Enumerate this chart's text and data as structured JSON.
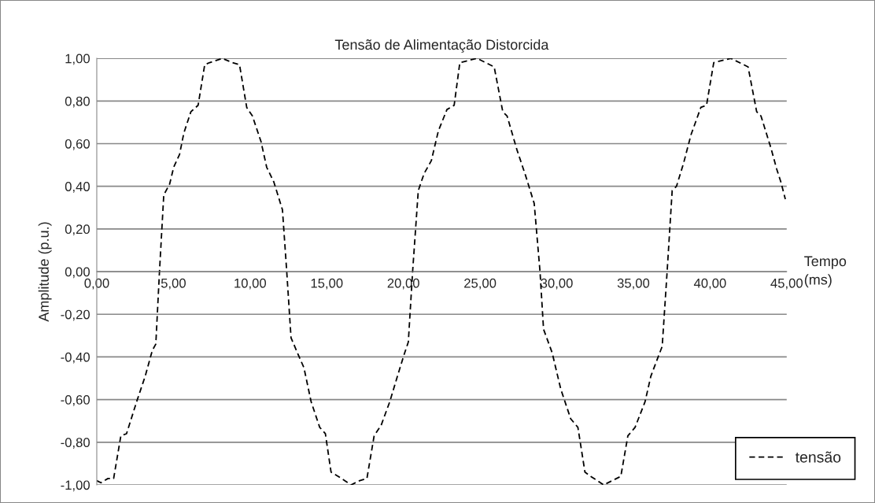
{
  "chart_data": {
    "type": "line",
    "title": "Tensão de Alimentação Distorcida",
    "xlabel": "Tempo (ms)",
    "ylabel": "Amplitude (p.u.)",
    "x": [
      0,
      0.27,
      0.73,
      1.1,
      1.57,
      1.94,
      2.6,
      3.16,
      3.62,
      3.85,
      4.09,
      4.37,
      4.75,
      5.02,
      5.4,
      5.68,
      6.14,
      6.61,
      7.04,
      7.36,
      8.19,
      8.85,
      9.31,
      9.78,
      10.15,
      10.71,
      11.08,
      11.55,
      12.11,
      12.39,
      12.67,
      13.14,
      13.51,
      13.98,
      14.54,
      14.91,
      15.28,
      15.75,
      16.59,
      17.15,
      17.62,
      18.09,
      18.55,
      19.11,
      19.57,
      20.04,
      20.32,
      20.6,
      20.97,
      21.35,
      21.82,
      22.28,
      22.84,
      23.31,
      23.68,
      24.8,
      25.92,
      26.48,
      26.76,
      27.41,
      27.97,
      28.53,
      28.91,
      29.14,
      29.7,
      30.26,
      30.91,
      31.38,
      31.84,
      32.22,
      33.06,
      34.18,
      34.64,
      35.11,
      35.76,
      36.14,
      36.88,
      37.2,
      37.53,
      37.81,
      38.28,
      38.75,
      39.4,
      39.77,
      40.24,
      41.36,
      42.48,
      43.04,
      43.32,
      43.97,
      44.35,
      44.62,
      44.91
    ],
    "series": [
      {
        "name": "tensão",
        "color": "#000000",
        "values": [
          -0.98,
          -0.99,
          -0.97,
          -0.97,
          -0.77,
          -0.76,
          -0.61,
          -0.49,
          -0.37,
          -0.34,
          0.0,
          0.36,
          0.41,
          0.49,
          0.55,
          0.65,
          0.75,
          0.78,
          0.97,
          0.98,
          1.0,
          0.98,
          0.97,
          0.77,
          0.73,
          0.61,
          0.49,
          0.42,
          0.29,
          0.0,
          -0.31,
          -0.39,
          -0.45,
          -0.61,
          -0.73,
          -0.76,
          -0.94,
          -0.96,
          -1.0,
          -0.98,
          -0.97,
          -0.77,
          -0.72,
          -0.61,
          -0.5,
          -0.39,
          -0.33,
          0.0,
          0.38,
          0.46,
          0.52,
          0.66,
          0.76,
          0.78,
          0.98,
          1.0,
          0.96,
          0.75,
          0.73,
          0.57,
          0.45,
          0.32,
          0.0,
          -0.27,
          -0.38,
          -0.55,
          -0.69,
          -0.73,
          -0.94,
          -0.96,
          -1.0,
          -0.96,
          -0.77,
          -0.73,
          -0.61,
          -0.49,
          -0.35,
          0.0,
          0.38,
          0.4,
          0.51,
          0.64,
          0.77,
          0.78,
          0.98,
          1.0,
          0.96,
          0.75,
          0.73,
          0.58,
          0.48,
          0.42,
          0.34
        ]
      }
    ],
    "xlim": [
      0,
      45
    ],
    "ylim": [
      -1,
      1
    ],
    "xticks": [
      {
        "value": 0,
        "label": "0,00"
      },
      {
        "value": 5,
        "label": "5,00"
      },
      {
        "value": 10,
        "label": "10,00"
      },
      {
        "value": 15,
        "label": "15,00"
      },
      {
        "value": 20,
        "label": "20,00"
      },
      {
        "value": 25,
        "label": "25,00"
      },
      {
        "value": 30,
        "label": "30,00"
      },
      {
        "value": 35,
        "label": "35,00"
      },
      {
        "value": 40,
        "label": "40,00"
      },
      {
        "value": 45,
        "label": "45,00"
      }
    ],
    "yticks": [
      {
        "value": -1,
        "label": "-1,00"
      },
      {
        "value": -0.8,
        "label": "-0,80"
      },
      {
        "value": -0.6,
        "label": "-0,60"
      },
      {
        "value": -0.4,
        "label": "-0,40"
      },
      {
        "value": -0.2,
        "label": "-0,20"
      },
      {
        "value": 0,
        "label": "0,00"
      },
      {
        "value": 0.2,
        "label": "0,20"
      },
      {
        "value": 0.4,
        "label": "0,40"
      },
      {
        "value": 0.6,
        "label": "0,60"
      },
      {
        "value": 0.8,
        "label": "0,80"
      },
      {
        "value": 1,
        "label": "1,00"
      }
    ],
    "grid": "y",
    "legend": "bottom right",
    "line_style": "dashed",
    "marker": "none"
  }
}
